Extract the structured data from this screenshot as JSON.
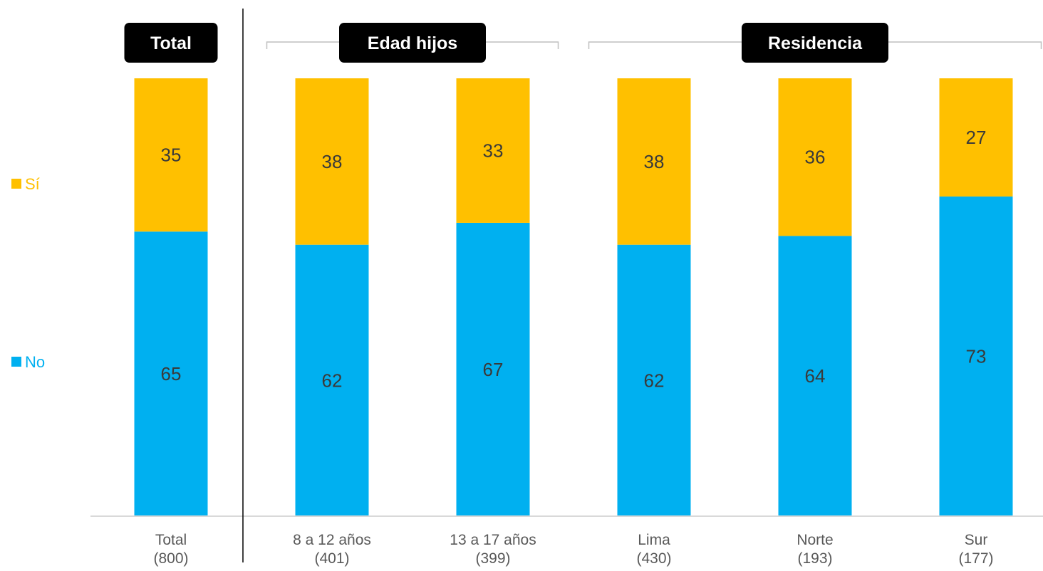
{
  "colors": {
    "si": "#FFC000",
    "no": "#00B0F0",
    "divider": "#000000",
    "axis": "#d9d9d9",
    "bracket": "#bfbfbf",
    "group_box": "#000000"
  },
  "legend": [
    {
      "key": "si",
      "label": "Sí"
    },
    {
      "key": "no",
      "label": "No"
    }
  ],
  "groups": [
    {
      "label": "Total",
      "bracket": false,
      "members": [
        0
      ]
    },
    {
      "label": "Edad hijos",
      "bracket": true,
      "members": [
        1,
        2
      ]
    },
    {
      "label": "Residencia",
      "bracket": true,
      "members": [
        3,
        4,
        5
      ]
    }
  ],
  "chart_data": {
    "type": "bar",
    "stacked": true,
    "percent_stacked": true,
    "categories": [
      {
        "name": "Total",
        "n": "(800)"
      },
      {
        "name": "8 a 12 años",
        "n": "(401)"
      },
      {
        "name": "13 a 17 años",
        "n": "(399)"
      },
      {
        "name": "Lima",
        "n": "(430)"
      },
      {
        "name": "Norte",
        "n": "(193)"
      },
      {
        "name": "Sur",
        "n": "(177)"
      }
    ],
    "series": [
      {
        "name": "No",
        "values": [
          65,
          62,
          67,
          62,
          64,
          73
        ]
      },
      {
        "name": "Sí",
        "values": [
          35,
          38,
          33,
          38,
          36,
          27
        ]
      }
    ],
    "ylim": [
      0,
      100
    ],
    "grid": false,
    "legend_position": "left"
  }
}
